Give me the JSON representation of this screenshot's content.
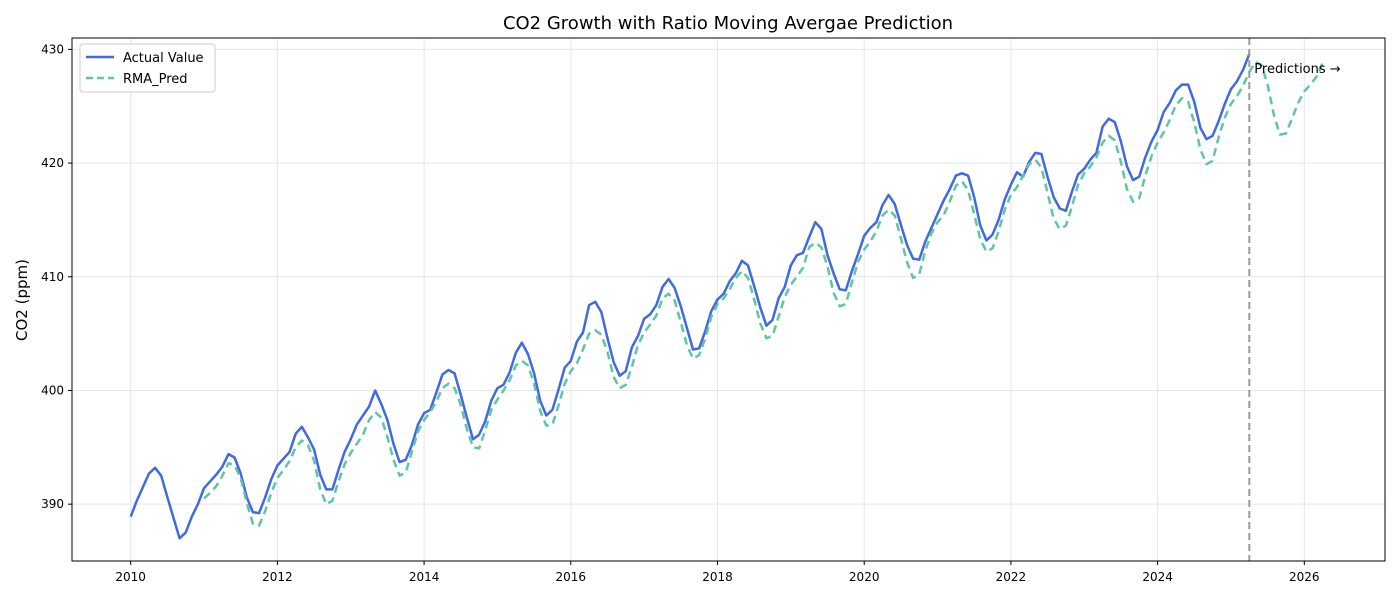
{
  "chart_data": {
    "type": "line",
    "title": "CO2 Growth with Ratio Moving Avergae Prediction",
    "xlabel": "",
    "ylabel": "CO2 (ppm)",
    "xlim": [
      2009.2,
      2027.1
    ],
    "ylim": [
      385,
      431
    ],
    "xticks": [
      2010,
      2012,
      2014,
      2016,
      2018,
      2020,
      2022,
      2024,
      2026
    ],
    "yticks": [
      390,
      400,
      410,
      420,
      430
    ],
    "grid": true,
    "legend_position": "top-left",
    "annotation": {
      "text": "Predictions →",
      "x": 2025.25
    },
    "colors": {
      "actual": "#4169e1",
      "pred": "#5fc6a4",
      "divider": "#999999",
      "grid": "#e6e6e6"
    },
    "series": [
      {
        "name": "Actual Value",
        "style": "solid",
        "color": "#4169e1",
        "x_start": 2010.0,
        "x_step": 0.08333,
        "values": [
          388.9,
          390.3,
          391.5,
          392.7,
          393.2,
          392.5,
          390.6,
          388.8,
          387.0,
          387.5,
          388.9,
          390.0,
          391.4,
          392.0,
          392.6,
          393.3,
          394.4,
          394.1,
          392.7,
          390.6,
          389.3,
          389.2,
          390.6,
          392.2,
          393.4,
          394.0,
          394.6,
          396.2,
          396.8,
          395.9,
          394.8,
          392.6,
          391.3,
          391.3,
          393.0,
          394.6,
          395.7,
          397.0,
          397.8,
          398.6,
          400.0,
          398.8,
          397.4,
          395.3,
          393.7,
          393.9,
          395.2,
          397.0,
          398.0,
          398.3,
          399.8,
          401.4,
          401.8,
          401.5,
          399.6,
          397.6,
          395.7,
          396.1,
          397.3,
          399.1,
          400.2,
          400.5,
          401.6,
          403.3,
          404.2,
          403.2,
          401.5,
          399.1,
          397.8,
          398.3,
          400.1,
          402.0,
          402.6,
          404.3,
          405.1,
          407.5,
          407.8,
          406.9,
          404.6,
          402.5,
          401.3,
          401.7,
          403.8,
          404.8,
          406.3,
          406.7,
          407.5,
          409.1,
          409.8,
          409.0,
          407.4,
          405.5,
          403.6,
          403.7,
          405.2,
          407.0,
          408.0,
          408.5,
          409.6,
          410.3,
          411.4,
          411.0,
          409.2,
          407.3,
          405.7,
          406.2,
          408.1,
          409.1,
          411.0,
          411.9,
          412.1,
          413.5,
          414.8,
          414.2,
          411.9,
          410.3,
          408.9,
          408.8,
          410.5,
          412.0,
          413.6,
          414.3,
          414.8,
          416.3,
          417.2,
          416.4,
          414.6,
          412.8,
          411.6,
          411.5,
          413.1,
          414.3,
          415.5,
          416.7,
          417.7,
          418.9,
          419.1,
          418.9,
          417.0,
          414.5,
          413.2,
          413.7,
          415.0,
          416.8,
          418.1,
          419.2,
          418.8,
          420.1,
          420.9,
          420.8,
          418.8,
          417.0,
          416.0,
          415.8,
          417.5,
          419.0,
          419.5,
          420.3,
          420.9,
          423.2,
          423.9,
          423.6,
          421.9,
          419.7,
          418.5,
          418.8,
          420.5,
          421.9,
          422.9,
          424.5,
          425.3,
          426.4,
          426.9,
          426.9,
          425.4,
          423.1,
          422.1,
          422.4,
          423.7,
          425.2,
          426.5,
          427.2,
          428.2,
          429.6
        ]
      },
      {
        "name": "RMA_Pred",
        "style": "dashed",
        "color": "#5fc6a4",
        "x_start": 2011.0,
        "x_step": 0.08333,
        "values": [
          390.5,
          391.0,
          391.6,
          392.5,
          393.6,
          393.4,
          392.3,
          390.1,
          388.3,
          388.1,
          389.4,
          391.0,
          392.3,
          393.0,
          393.8,
          395.0,
          395.6,
          395.2,
          393.8,
          391.3,
          390.0,
          390.3,
          392.0,
          393.5,
          394.5,
          395.3,
          396.1,
          397.4,
          398.1,
          397.6,
          395.9,
          393.9,
          392.5,
          392.8,
          394.6,
          396.4,
          397.4,
          398.1,
          399.0,
          400.2,
          400.6,
          400.2,
          398.7,
          396.6,
          395.0,
          394.9,
          396.5,
          398.3,
          399.2,
          400.0,
          400.9,
          402.2,
          402.6,
          402.2,
          400.6,
          398.2,
          396.9,
          397.0,
          398.7,
          400.6,
          401.7,
          402.4,
          403.6,
          405.0,
          405.3,
          404.9,
          403.4,
          401.2,
          400.2,
          400.5,
          402.1,
          404.0,
          405.1,
          405.8,
          406.6,
          408.1,
          408.5,
          407.9,
          406.0,
          404.0,
          402.8,
          403.1,
          404.6,
          406.5,
          407.6,
          408.1,
          408.9,
          409.9,
          410.5,
          409.9,
          408.0,
          405.9,
          404.6,
          404.8,
          406.5,
          408.2,
          409.3,
          410.0,
          410.8,
          412.6,
          413.0,
          412.6,
          410.9,
          408.6,
          407.4,
          407.6,
          409.5,
          411.3,
          412.4,
          413.1,
          414.0,
          415.4,
          415.9,
          415.4,
          413.4,
          411.3,
          409.9,
          410.2,
          412.3,
          413.8,
          414.8,
          415.4,
          416.6,
          418.0,
          418.4,
          417.6,
          415.5,
          413.3,
          412.2,
          412.5,
          414.0,
          415.9,
          417.2,
          417.9,
          418.9,
          419.9,
          420.3,
          419.6,
          417.4,
          415.1,
          414.2,
          414.5,
          416.2,
          418.1,
          419.1,
          419.7,
          420.5,
          421.8,
          422.4,
          422.0,
          420.1,
          417.7,
          416.6,
          416.9,
          418.9,
          420.6,
          421.8,
          422.7,
          423.8,
          425.1,
          425.7,
          425.4,
          423.6,
          421.2,
          419.9,
          420.2,
          422.3,
          424.0,
          425.2,
          425.9,
          426.8,
          428.0,
          428.9,
          428.6,
          426.9,
          424.3,
          422.5,
          422.6,
          423.9,
          425.3,
          426.3,
          426.9,
          427.6,
          428.8
        ]
      }
    ]
  }
}
